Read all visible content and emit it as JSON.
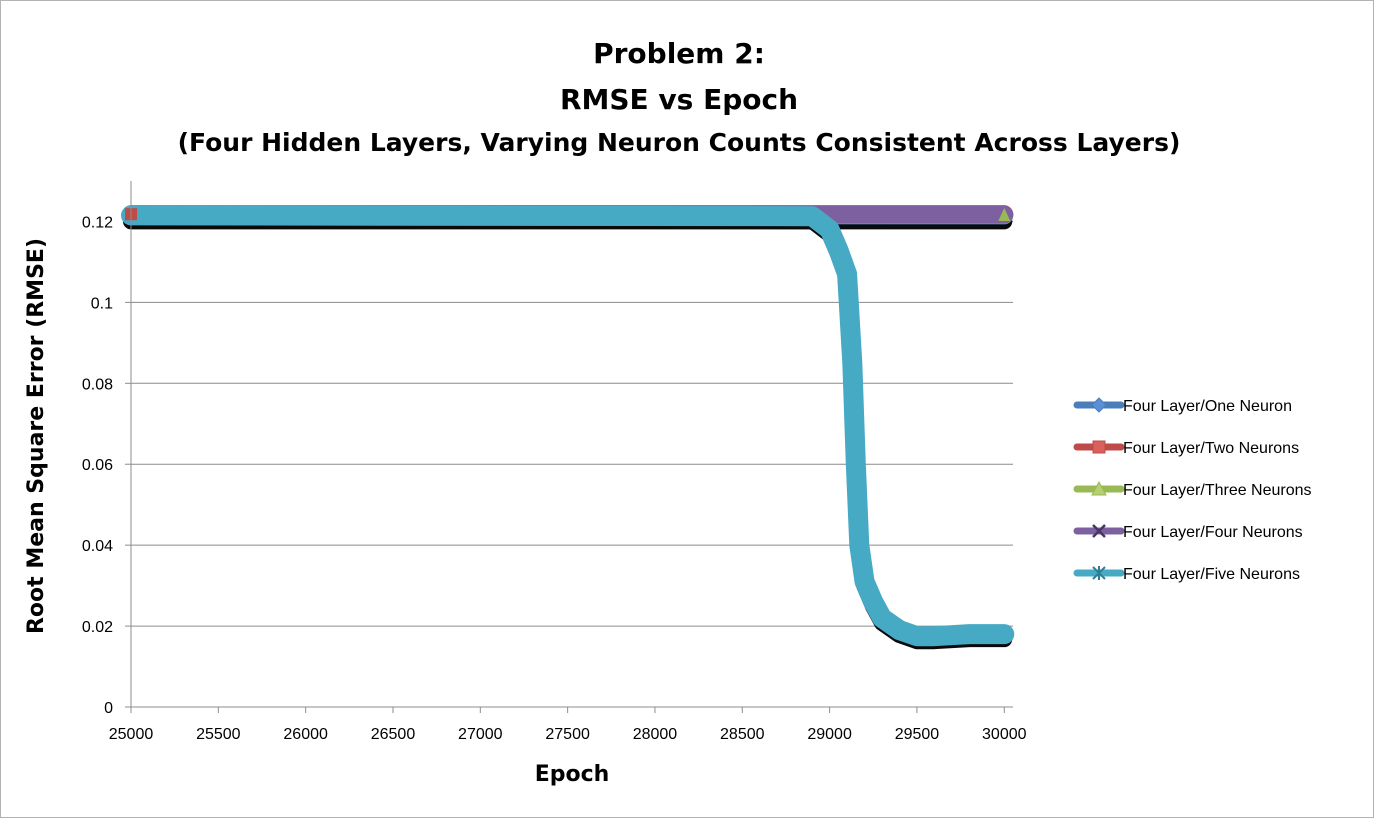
{
  "chart_data": {
    "type": "line",
    "title_lines": [
      "Problem 2:",
      "RMSE vs Epoch",
      "(Four Hidden Layers, Varying Neuron Counts Consistent Across Layers)"
    ],
    "xlabel": "Epoch",
    "ylabel": "Root Mean Square Error (RMSE)",
    "xlim": [
      25000,
      30050
    ],
    "ylim": [
      0,
      0.13
    ],
    "x_ticks": [
      "25000",
      "25500",
      "26000",
      "26500",
      "27000",
      "27500",
      "28000",
      "28500",
      "29000",
      "29500",
      "30000"
    ],
    "x_tick_values": [
      25000,
      25500,
      26000,
      26500,
      27000,
      27500,
      28000,
      28500,
      29000,
      29500,
      30000
    ],
    "y_ticks": [
      "0",
      "0.02",
      "0.04",
      "0.06",
      "0.08",
      "0.1",
      "0.12"
    ],
    "y_tick_values": [
      0,
      0.02,
      0.04,
      0.06,
      0.08,
      0.1,
      0.12
    ],
    "grid": "horizontal",
    "legend_position": "right",
    "series": [
      {
        "name": "Four Layer/One Neuron",
        "color": "#4a7ebb",
        "marker": "diamond",
        "x": [
          25000,
          30000
        ],
        "y": [
          0.1215,
          0.1215
        ]
      },
      {
        "name": "Four Layer/Two Neurons",
        "color": "#be4b48",
        "marker": "square",
        "x": [
          25000,
          30000
        ],
        "y": [
          0.1218,
          0.1218
        ]
      },
      {
        "name": "Four Layer/Three Neurons",
        "color": "#98b954",
        "marker": "triangle",
        "x": [
          25000,
          30000
        ],
        "y": [
          0.1216,
          0.1216
        ]
      },
      {
        "name": "Four Layer/Four Neurons",
        "color": "#7d60a0",
        "marker": "x",
        "x": [
          25000,
          30000
        ],
        "y": [
          0.1217,
          0.1217
        ]
      },
      {
        "name": "Four Layer/Five Neurons",
        "color": "#46aac5",
        "marker": "star",
        "x": [
          25000,
          28900,
          29000,
          29050,
          29100,
          29130,
          29150,
          29170,
          29200,
          29250,
          29300,
          29400,
          29500,
          29600,
          29800,
          30000
        ],
        "y": [
          0.1215,
          0.1213,
          0.118,
          0.113,
          0.107,
          0.085,
          0.06,
          0.04,
          0.031,
          0.026,
          0.022,
          0.019,
          0.0175,
          0.0175,
          0.018,
          0.018
        ]
      }
    ]
  }
}
